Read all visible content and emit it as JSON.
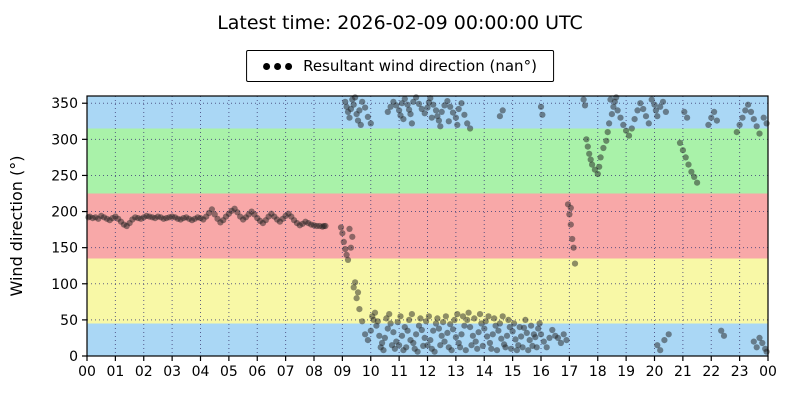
{
  "chart_data": {
    "type": "scatter",
    "title": "Latest time: 2026-02-09 00:00:00 UTC",
    "legend_label": "Resultant wind direction (nan°)",
    "xlabel": "",
    "ylabel": "Wind direction (°)",
    "xlim": [
      0,
      24
    ],
    "ylim": [
      0,
      360
    ],
    "grid": true,
    "grid_color": "#44447a",
    "point_color": "#222222",
    "point_opacity": 0.5,
    "x_ticks": {
      "values": [
        0,
        1,
        2,
        3,
        4,
        5,
        6,
        7,
        8,
        9,
        10,
        11,
        12,
        13,
        14,
        15,
        16,
        17,
        18,
        19,
        20,
        21,
        22,
        23,
        24
      ],
      "labels": [
        "00",
        "01",
        "02",
        "03",
        "04",
        "05",
        "06",
        "07",
        "08",
        "09",
        "10",
        "11",
        "12",
        "13",
        "14",
        "15",
        "16",
        "17",
        "18",
        "19",
        "20",
        "21",
        "22",
        "23",
        "00"
      ]
    },
    "y_ticks": [
      0,
      50,
      100,
      150,
      200,
      250,
      300,
      350
    ],
    "bands": [
      {
        "from": 0,
        "to": 45,
        "color": "#aad7f5"
      },
      {
        "from": 45,
        "to": 135,
        "color": "#f8f8a6"
      },
      {
        "from": 135,
        "to": 225,
        "color": "#f8a8a8"
      },
      {
        "from": 225,
        "to": 315,
        "color": "#a9f2a9"
      },
      {
        "from": 315,
        "to": 360,
        "color": "#aad7f5"
      }
    ],
    "points": [
      [
        0.05,
        192
      ],
      [
        0.1,
        193
      ],
      [
        0.2,
        191
      ],
      [
        0.3,
        192
      ],
      [
        0.4,
        190
      ],
      [
        0.5,
        194
      ],
      [
        0.6,
        192
      ],
      [
        0.7,
        190
      ],
      [
        0.8,
        188
      ],
      [
        0.9,
        191
      ],
      [
        1.0,
        193
      ],
      [
        1.1,
        190
      ],
      [
        1.2,
        186
      ],
      [
        1.3,
        182
      ],
      [
        1.4,
        180
      ],
      [
        1.5,
        184
      ],
      [
        1.6,
        189
      ],
      [
        1.7,
        192
      ],
      [
        1.8,
        191
      ],
      [
        1.9,
        190
      ],
      [
        2.0,
        192
      ],
      [
        2.1,
        194
      ],
      [
        2.2,
        193
      ],
      [
        2.3,
        192
      ],
      [
        2.4,
        191
      ],
      [
        2.5,
        193
      ],
      [
        2.6,
        192
      ],
      [
        2.7,
        190
      ],
      [
        2.8,
        191
      ],
      [
        2.9,
        192
      ],
      [
        3.0,
        193
      ],
      [
        3.1,
        192
      ],
      [
        3.2,
        190
      ],
      [
        3.3,
        189
      ],
      [
        3.4,
        191
      ],
      [
        3.5,
        192
      ],
      [
        3.6,
        190
      ],
      [
        3.7,
        188
      ],
      [
        3.8,
        190
      ],
      [
        3.9,
        192
      ],
      [
        4.0,
        191
      ],
      [
        4.1,
        189
      ],
      [
        4.2,
        193
      ],
      [
        4.3,
        198
      ],
      [
        4.4,
        203
      ],
      [
        4.5,
        196
      ],
      [
        4.6,
        190
      ],
      [
        4.7,
        185
      ],
      [
        4.8,
        188
      ],
      [
        4.9,
        193
      ],
      [
        5.0,
        197
      ],
      [
        5.1,
        201
      ],
      [
        5.2,
        204
      ],
      [
        5.3,
        199
      ],
      [
        5.4,
        193
      ],
      [
        5.5,
        189
      ],
      [
        5.6,
        192
      ],
      [
        5.7,
        196
      ],
      [
        5.8,
        200
      ],
      [
        5.9,
        196
      ],
      [
        6.0,
        191
      ],
      [
        6.1,
        187
      ],
      [
        6.2,
        184
      ],
      [
        6.3,
        188
      ],
      [
        6.4,
        193
      ],
      [
        6.5,
        197
      ],
      [
        6.6,
        193
      ],
      [
        6.7,
        189
      ],
      [
        6.8,
        186
      ],
      [
        6.9,
        190
      ],
      [
        7.0,
        194
      ],
      [
        7.1,
        197
      ],
      [
        7.2,
        193
      ],
      [
        7.3,
        188
      ],
      [
        7.4,
        184
      ],
      [
        7.5,
        181
      ],
      [
        7.6,
        183
      ],
      [
        7.7,
        186
      ],
      [
        7.8,
        184
      ],
      [
        7.9,
        182
      ],
      [
        8.0,
        181
      ],
      [
        8.1,
        180
      ],
      [
        8.2,
        180
      ],
      [
        8.3,
        179
      ],
      [
        8.35,
        180
      ],
      [
        8.4,
        180
      ],
      [
        8.95,
        178
      ],
      [
        9.0,
        170
      ],
      [
        9.05,
        158
      ],
      [
        9.1,
        148
      ],
      [
        9.15,
        140
      ],
      [
        9.2,
        133
      ],
      [
        9.25,
        176
      ],
      [
        9.3,
        150
      ],
      [
        9.35,
        165
      ],
      [
        9.1,
        352
      ],
      [
        9.15,
        345
      ],
      [
        9.2,
        338
      ],
      [
        9.25,
        330
      ],
      [
        9.3,
        342
      ],
      [
        9.35,
        355
      ],
      [
        9.4,
        348
      ],
      [
        9.45,
        358
      ],
      [
        9.5,
        335
      ],
      [
        9.55,
        326
      ],
      [
        9.6,
        340
      ],
      [
        9.65,
        320
      ],
      [
        9.7,
        352
      ],
      [
        9.8,
        344
      ],
      [
        9.9,
        331
      ],
      [
        10.0,
        322
      ],
      [
        10.6,
        338
      ],
      [
        10.7,
        345
      ],
      [
        10.8,
        352
      ],
      [
        10.9,
        347
      ],
      [
        11.0,
        340
      ],
      [
        11.05,
        333
      ],
      [
        11.1,
        350
      ],
      [
        11.15,
        328
      ],
      [
        11.2,
        356
      ],
      [
        11.3,
        348
      ],
      [
        11.35,
        341
      ],
      [
        11.4,
        335
      ],
      [
        11.45,
        322
      ],
      [
        11.5,
        352
      ],
      [
        11.6,
        358
      ],
      [
        11.7,
        349
      ],
      [
        11.8,
        342
      ],
      [
        11.9,
        336
      ],
      [
        12.0,
        344
      ],
      [
        12.05,
        351
      ],
      [
        12.1,
        357
      ],
      [
        12.15,
        330
      ],
      [
        12.2,
        348
      ],
      [
        12.3,
        340
      ],
      [
        12.35,
        332
      ],
      [
        12.4,
        326
      ],
      [
        12.45,
        318
      ],
      [
        12.5,
        338
      ],
      [
        12.6,
        347
      ],
      [
        12.7,
        353
      ],
      [
        12.75,
        325
      ],
      [
        12.8,
        345
      ],
      [
        12.9,
        337
      ],
      [
        13.0,
        330
      ],
      [
        13.05,
        320
      ],
      [
        13.1,
        342
      ],
      [
        13.2,
        350
      ],
      [
        13.3,
        334
      ],
      [
        13.4,
        322
      ],
      [
        13.5,
        315
      ],
      [
        14.55,
        332
      ],
      [
        14.65,
        340
      ],
      [
        16.0,
        345
      ],
      [
        16.05,
        334
      ],
      [
        17.5,
        355
      ],
      [
        17.55,
        347
      ],
      [
        9.4,
        95
      ],
      [
        9.45,
        102
      ],
      [
        9.5,
        80
      ],
      [
        9.55,
        88
      ],
      [
        9.6,
        65
      ],
      [
        9.7,
        48
      ],
      [
        9.8,
        30
      ],
      [
        9.9,
        22
      ],
      [
        10.0,
        35
      ],
      [
        10.1,
        50
      ],
      [
        10.2,
        42
      ],
      [
        10.3,
        28
      ],
      [
        10.4,
        18
      ],
      [
        10.5,
        25
      ],
      [
        10.6,
        38
      ],
      [
        10.7,
        45
      ],
      [
        10.8,
        33
      ],
      [
        10.9,
        20
      ],
      [
        11.0,
        15
      ],
      [
        11.1,
        28
      ],
      [
        11.2,
        40
      ],
      [
        11.3,
        35
      ],
      [
        11.4,
        22
      ],
      [
        11.5,
        18
      ],
      [
        11.6,
        30
      ],
      [
        11.7,
        42
      ],
      [
        11.8,
        36
      ],
      [
        11.9,
        25
      ],
      [
        12.0,
        15
      ],
      [
        12.1,
        22
      ],
      [
        12.2,
        35
      ],
      [
        12.3,
        45
      ],
      [
        12.4,
        38
      ],
      [
        12.5,
        28
      ],
      [
        12.6,
        20
      ],
      [
        12.7,
        32
      ],
      [
        12.8,
        44
      ],
      [
        12.9,
        37
      ],
      [
        13.0,
        26
      ],
      [
        13.1,
        18
      ],
      [
        13.2,
        30
      ],
      [
        13.3,
        42
      ],
      [
        13.4,
        50
      ],
      [
        13.5,
        40
      ],
      [
        13.6,
        28
      ],
      [
        13.7,
        20
      ],
      [
        13.8,
        33
      ],
      [
        13.9,
        45
      ],
      [
        14.0,
        38
      ],
      [
        14.1,
        27
      ],
      [
        14.2,
        18
      ],
      [
        14.3,
        30
      ],
      [
        14.4,
        42
      ],
      [
        14.5,
        35
      ],
      [
        14.6,
        24
      ],
      [
        14.7,
        16
      ],
      [
        14.8,
        28
      ],
      [
        14.9,
        40
      ],
      [
        15.0,
        34
      ],
      [
        15.1,
        23
      ],
      [
        15.2,
        15
      ],
      [
        15.3,
        27
      ],
      [
        15.4,
        39
      ],
      [
        15.5,
        32
      ],
      [
        15.6,
        22
      ],
      [
        15.7,
        14
      ],
      [
        15.8,
        26
      ],
      [
        15.9,
        38
      ],
      [
        16.0,
        30
      ],
      [
        16.1,
        20
      ],
      [
        16.2,
        12
      ],
      [
        16.3,
        25
      ],
      [
        16.4,
        36
      ],
      [
        16.5,
        28
      ],
      [
        10.05,
        55
      ],
      [
        10.15,
        60
      ],
      [
        10.25,
        48
      ],
      [
        10.35,
        12
      ],
      [
        10.45,
        8
      ],
      [
        10.55,
        52
      ],
      [
        10.65,
        58
      ],
      [
        10.75,
        15
      ],
      [
        10.85,
        10
      ],
      [
        10.95,
        47
      ],
      [
        11.05,
        55
      ],
      [
        11.15,
        8
      ],
      [
        11.25,
        12
      ],
      [
        11.35,
        50
      ],
      [
        11.45,
        58
      ],
      [
        11.55,
        10
      ],
      [
        11.65,
        6
      ],
      [
        11.75,
        52
      ],
      [
        11.85,
        14
      ],
      [
        11.95,
        48
      ],
      [
        12.05,
        55
      ],
      [
        12.15,
        10
      ],
      [
        12.25,
        6
      ],
      [
        12.35,
        52
      ],
      [
        12.45,
        15
      ],
      [
        12.55,
        47
      ],
      [
        12.65,
        55
      ],
      [
        12.75,
        12
      ],
      [
        12.85,
        8
      ],
      [
        12.95,
        50
      ],
      [
        13.05,
        58
      ],
      [
        13.15,
        12
      ],
      [
        13.25,
        55
      ],
      [
        13.35,
        8
      ],
      [
        13.45,
        60
      ],
      [
        13.55,
        15
      ],
      [
        13.65,
        52
      ],
      [
        13.75,
        10
      ],
      [
        13.85,
        58
      ],
      [
        13.95,
        14
      ],
      [
        14.05,
        48
      ],
      [
        14.15,
        55
      ],
      [
        14.25,
        10
      ],
      [
        14.35,
        52
      ],
      [
        14.45,
        8
      ],
      [
        14.55,
        45
      ],
      [
        14.65,
        55
      ],
      [
        14.75,
        12
      ],
      [
        14.85,
        50
      ],
      [
        14.95,
        10
      ],
      [
        15.05,
        45
      ],
      [
        15.15,
        8
      ],
      [
        15.25,
        40
      ],
      [
        15.35,
        12
      ],
      [
        15.45,
        50
      ],
      [
        15.55,
        8
      ],
      [
        15.65,
        42
      ],
      [
        15.75,
        30
      ],
      [
        15.85,
        12
      ],
      [
        15.95,
        45
      ],
      [
        16.6,
        25
      ],
      [
        16.7,
        18
      ],
      [
        16.8,
        30
      ],
      [
        16.9,
        22
      ],
      [
        16.95,
        210
      ],
      [
        17.0,
        196
      ],
      [
        17.05,
        182
      ],
      [
        17.05,
        205
      ],
      [
        17.1,
        162
      ],
      [
        17.15,
        150
      ],
      [
        17.2,
        128
      ],
      [
        17.6,
        300
      ],
      [
        17.65,
        290
      ],
      [
        17.7,
        280
      ],
      [
        17.75,
        272
      ],
      [
        17.8,
        265
      ],
      [
        17.9,
        258
      ],
      [
        18.0,
        252
      ],
      [
        18.05,
        262
      ],
      [
        18.1,
        275
      ],
      [
        18.2,
        288
      ],
      [
        18.3,
        298
      ],
      [
        18.35,
        310
      ],
      [
        18.4,
        322
      ],
      [
        18.45,
        355
      ],
      [
        18.5,
        335
      ],
      [
        18.55,
        345
      ],
      [
        18.6,
        352
      ],
      [
        18.65,
        358
      ],
      [
        18.7,
        340
      ],
      [
        18.8,
        330
      ],
      [
        18.9,
        320
      ],
      [
        19.0,
        312
      ],
      [
        19.1,
        305
      ],
      [
        19.2,
        315
      ],
      [
        19.3,
        328
      ],
      [
        19.4,
        340
      ],
      [
        19.5,
        350
      ],
      [
        19.6,
        342
      ],
      [
        19.7,
        332
      ],
      [
        19.8,
        322
      ],
      [
        19.9,
        355
      ],
      [
        20.0,
        348
      ],
      [
        20.05,
        340
      ],
      [
        20.1,
        332
      ],
      [
        20.2,
        345
      ],
      [
        20.3,
        352
      ],
      [
        20.4,
        338
      ],
      [
        20.1,
        15
      ],
      [
        20.2,
        8
      ],
      [
        20.35,
        22
      ],
      [
        20.5,
        30
      ],
      [
        20.9,
        295
      ],
      [
        21.0,
        285
      ],
      [
        21.05,
        338
      ],
      [
        21.1,
        275
      ],
      [
        21.15,
        330
      ],
      [
        21.2,
        265
      ],
      [
        21.3,
        255
      ],
      [
        21.4,
        248
      ],
      [
        21.5,
        240
      ],
      [
        21.9,
        320
      ],
      [
        22.0,
        330
      ],
      [
        22.1,
        338
      ],
      [
        22.2,
        326
      ],
      [
        22.35,
        35
      ],
      [
        22.45,
        28
      ],
      [
        22.9,
        310
      ],
      [
        23.0,
        320
      ],
      [
        23.1,
        330
      ],
      [
        23.2,
        340
      ],
      [
        23.3,
        348
      ],
      [
        23.4,
        338
      ],
      [
        23.5,
        328
      ],
      [
        23.6,
        318
      ],
      [
        23.7,
        308
      ],
      [
        23.85,
        330
      ],
      [
        23.95,
        322
      ],
      [
        23.5,
        20
      ],
      [
        23.6,
        12
      ],
      [
        23.7,
        25
      ],
      [
        23.8,
        18
      ],
      [
        23.9,
        10
      ],
      [
        23.95,
        6
      ]
    ]
  }
}
